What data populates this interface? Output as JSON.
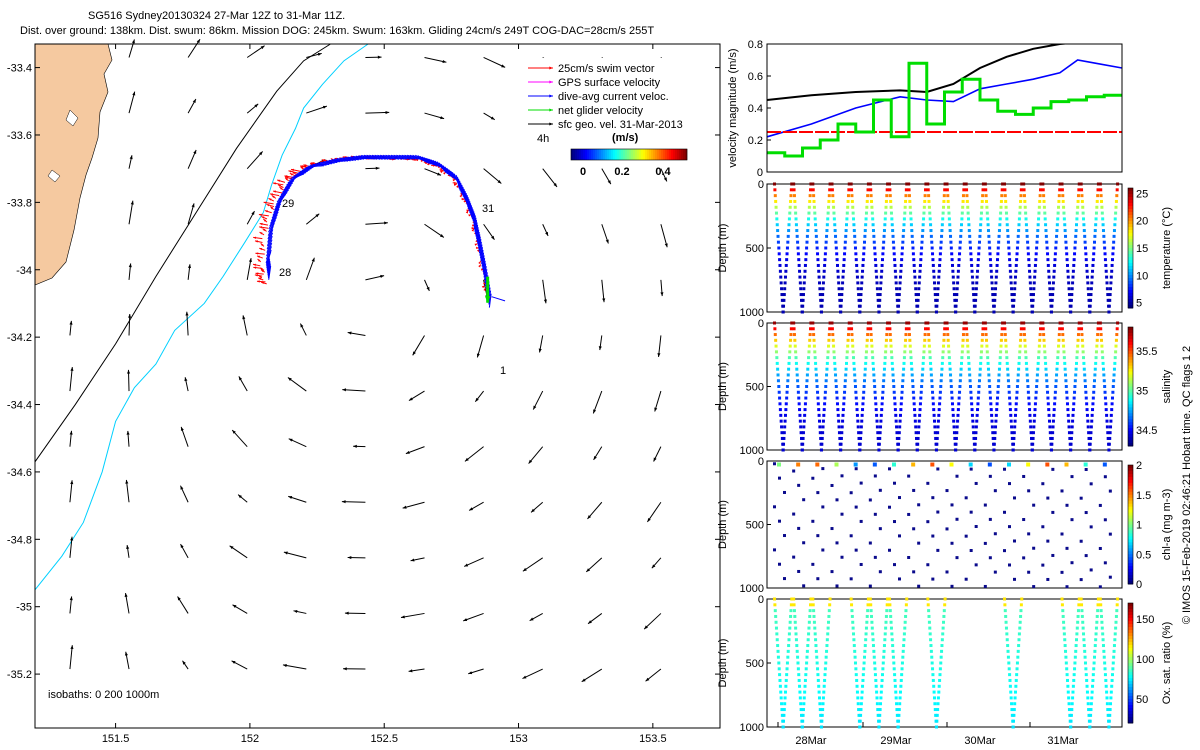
{
  "header": {
    "title": "SG516 Sydney20130324 27-Mar 12Z to 31-Mar 11Z.",
    "subtitle": "Dist. over ground: 138km. Dist. swum: 86km. Mission DOG: 245km. Swum: 163km. Gliding 24cm/s 249T COG-DAC=28cm/s 255T"
  },
  "legend": {
    "items": [
      {
        "label": "25cm/s swim vector",
        "color": "#ff0000"
      },
      {
        "label": "GPS surface velocity",
        "color": "#ff00ff"
      },
      {
        "label": "dive-avg current veloc.",
        "color": "#0000ff"
      },
      {
        "label": "net glider velocity",
        "color": "#00dd00"
      },
      {
        "label": "sfc geo. vel. 31-Mar-2013",
        "color": "#000000"
      }
    ],
    "scale_label": "4h",
    "colorbar_title": "(m/s)",
    "colorbar_ticks": [
      "0",
      "0.2",
      "0.4"
    ]
  },
  "map_labels": {
    "isobaths": "isobaths: 0   200   1000m",
    "day_labels": [
      "28",
      "29",
      "31",
      "1"
    ]
  },
  "credit": "© IMOS 15-Feb-2019 02:46:21 Hobart time. QC flags 1  2",
  "chart_data": [
    {
      "type": "scatter",
      "title": "",
      "xlabel": "",
      "ylabel": "",
      "xlim": [
        151.2,
        153.75
      ],
      "ylim": [
        -35.36,
        -33.33
      ],
      "x_ticks": [
        "151.5",
        "152",
        "152.5",
        "153",
        "153.5"
      ],
      "x_tick_values": [
        151.5,
        152,
        152.5,
        153,
        153.5
      ],
      "y_ticks": [
        "-33.4",
        "-33.6",
        "-33.8",
        "-34",
        "-34.2",
        "-34.4",
        "-34.6",
        "-34.8",
        "-35",
        "-35.2"
      ],
      "y_tick_values": [
        -33.4,
        -33.6,
        -33.8,
        -34,
        -34.2,
        -34.4,
        -34.6,
        -34.8,
        -35,
        -35.2
      ],
      "glider_track": {
        "lon": [
          152.07,
          152.06,
          152.07,
          152.1,
          152.15,
          152.22,
          152.32,
          152.42,
          152.52,
          152.62,
          152.7,
          152.77,
          152.81,
          152.84,
          152.86,
          152.88,
          152.9
        ],
        "lat": [
          -34.03,
          -33.98,
          -33.88,
          -33.8,
          -33.73,
          -33.69,
          -33.67,
          -33.66,
          -33.66,
          -33.66,
          -33.68,
          -33.72,
          -33.78,
          -33.84,
          -33.91,
          -33.99,
          -34.08
        ]
      },
      "isobath_200_lon": [
        151.2,
        151.3,
        151.38,
        151.45,
        151.5,
        151.57,
        151.65,
        151.72,
        151.83,
        151.9,
        151.98,
        152.05,
        152.08,
        152.12,
        152.17,
        152.2,
        152.27,
        152.35,
        152.44
      ],
      "isobath_200_lat": [
        -34.95,
        -34.85,
        -34.75,
        -34.6,
        -34.45,
        -34.35,
        -34.28,
        -34.18,
        -34.1,
        -34.02,
        -33.92,
        -33.83,
        -33.75,
        -33.66,
        -33.58,
        -33.52,
        -33.45,
        -33.38,
        -33.33
      ],
      "isobath_1000_lon": [
        151.2,
        151.35,
        151.5,
        151.65,
        151.8,
        151.95,
        152.1,
        152.2,
        152.3
      ],
      "isobath_1000_lat": [
        -34.57,
        -34.4,
        -34.22,
        -34.02,
        -33.83,
        -33.64,
        -33.47,
        -33.38,
        -33.33
      ]
    },
    {
      "type": "line",
      "title": "",
      "xlabel": "",
      "ylabel": "velocity magnitude (m/s)",
      "ylim": [
        0,
        0.8
      ],
      "y_ticks": [
        "0",
        "0.2",
        "0.4",
        "0.6",
        "0.8"
      ],
      "xlim": [
        27.5,
        31.5
      ],
      "series": [
        {
          "color": "#000000",
          "x": [
            27.5,
            28.0,
            28.5,
            29.0,
            29.3,
            29.6,
            29.9,
            30.2,
            30.5,
            30.8,
            31.2,
            31.5
          ],
          "y": [
            0.45,
            0.48,
            0.5,
            0.51,
            0.5,
            0.55,
            0.65,
            0.72,
            0.77,
            0.8,
            0.82,
            0.82
          ]
        },
        {
          "color": "#0000ff",
          "x": [
            27.5,
            28.0,
            28.5,
            29.0,
            29.3,
            29.6,
            29.9,
            30.2,
            30.5,
            30.8,
            31.0,
            31.2,
            31.5
          ],
          "y": [
            0.22,
            0.3,
            0.4,
            0.47,
            0.45,
            0.44,
            0.52,
            0.55,
            0.58,
            0.62,
            0.7,
            0.68,
            0.65
          ]
        },
        {
          "color": "#ff0000",
          "x": [
            27.5,
            31.5
          ],
          "y": [
            0.25,
            0.25
          ]
        },
        {
          "color": "#00dd00",
          "x": [
            27.5,
            27.7,
            27.9,
            28.1,
            28.3,
            28.5,
            28.7,
            28.9,
            29.1,
            29.3,
            29.5,
            29.7,
            29.9,
            30.1,
            30.3,
            30.5,
            30.7,
            30.9,
            31.1,
            31.3
          ],
          "y": [
            0.12,
            0.1,
            0.15,
            0.2,
            0.3,
            0.25,
            0.45,
            0.22,
            0.68,
            0.3,
            0.5,
            0.58,
            0.45,
            0.38,
            0.36,
            0.4,
            0.44,
            0.45,
            0.47,
            0.48
          ]
        }
      ]
    },
    {
      "type": "scatter",
      "title": "",
      "ylabel": "Depth (m)",
      "yticks": [
        "0",
        "500",
        "1000"
      ],
      "colorbar_label": "temperature (°C)",
      "colorbar_ticks": [
        "25",
        "20",
        "15",
        "10",
        "5"
      ],
      "clim": [
        4,
        26
      ]
    },
    {
      "type": "scatter",
      "title": "",
      "ylabel": "Depth (m)",
      "yticks": [
        "0",
        "500",
        "1000"
      ],
      "colorbar_label": "salinity",
      "colorbar_ticks": [
        "35.5",
        "35",
        "34.5"
      ],
      "clim": [
        34.3,
        35.8
      ]
    },
    {
      "type": "scatter",
      "title": "",
      "ylabel": "Depth (m)",
      "yticks": [
        "0",
        "500",
        "1000"
      ],
      "colorbar_label": "chl-a (mg m-3)",
      "colorbar_ticks": [
        "2",
        "1.5",
        "1",
        "0.5",
        "0"
      ],
      "clim": [
        0,
        2
      ]
    },
    {
      "type": "scatter",
      "title": "",
      "ylabel": "Depth (m)",
      "yticks": [
        "0",
        "500",
        "1000"
      ],
      "colorbar_label": "Ox. sat. ratio (%)",
      "colorbar_ticks": [
        "150",
        "100",
        "50"
      ],
      "clim": [
        20,
        170
      ],
      "x_ticks": [
        "28Mar",
        "29Mar",
        "30Mar",
        "31Mar"
      ]
    }
  ]
}
